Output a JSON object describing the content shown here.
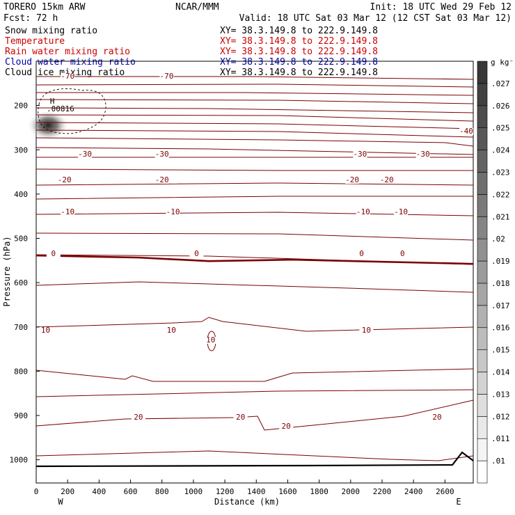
{
  "header": {
    "model": "TORERO  15km ARW",
    "center": "NCAR/MMM",
    "init": "Init: 18 UTC Wed 29 Feb 12",
    "fcst": "Fcst:   72 h",
    "valid": "Valid: 18 UTC Sat 03 Mar 12 (12 CST Sat 03 Mar 12)"
  },
  "legend": [
    {
      "name": "Snow mixing ratio",
      "xy": "XY=  38.3.149.8 to 222.9.149.8",
      "color": "#000000"
    },
    {
      "name": "Temperature",
      "xy": "XY=  38.3.149.8 to 222.9.149.8",
      "color": "#cc0000"
    },
    {
      "name": "Rain water mixing ratio",
      "xy": "XY=  38.3.149.8 to 222.9.149.8",
      "color": "#cc0000"
    },
    {
      "name": "Cloud water mixing ratio",
      "xy": "XY=  38.3.149.8 to 222.9.149.8",
      "color": "#0000aa"
    },
    {
      "name": "Cloud ice mixing ratio",
      "xy": "XY=  38.3.149.8 to 222.9.149.8",
      "color": "#000000"
    }
  ],
  "chart_data": {
    "type": "contour cross-section",
    "xlabel": "Distance (km)",
    "ylabel": "Pressure (hPa)",
    "xlim": [
      0,
      2780
    ],
    "ylim": [
      1050,
      100
    ],
    "x_ticks": [
      0,
      200,
      400,
      600,
      800,
      1000,
      1200,
      1400,
      1600,
      1800,
      2000,
      2200,
      2400,
      2600
    ],
    "y_ticks": [
      200,
      300,
      400,
      500,
      600,
      700,
      800,
      900,
      1000
    ],
    "endpoints": {
      "left": "W",
      "right": "E"
    },
    "temperature_contours_C": [
      {
        "value": -70,
        "labels_at_km": [
          200,
          830
        ]
      },
      {
        "value": -40,
        "labels_at_km": [
          2750
        ]
      },
      {
        "value": -30,
        "labels_at_km": [
          310,
          800,
          2060,
          2460
        ]
      },
      {
        "value": -20,
        "labels_at_km": [
          180,
          800,
          2010,
          2230
        ]
      },
      {
        "value": -10,
        "labels_at_km": [
          200,
          870,
          2080,
          2320
        ]
      },
      {
        "value": 0,
        "pressure_hPa": 545,
        "freezing_level": true,
        "labels_at_km": [
          110,
          1020,
          2070,
          2330
        ]
      },
      {
        "value": 10,
        "labels_at_km": [
          60,
          860,
          1110,
          2100
        ]
      },
      {
        "value": 20,
        "labels_at_km": [
          650,
          1300,
          1590,
          2550
        ]
      }
    ],
    "snow_maximum": {
      "marker": "H",
      "label": ".00816",
      "location_km": 120,
      "pressure_hPa": 210
    },
    "colorbar": {
      "unit": "g kg⁻¹",
      "ticks": [
        ".01",
        ".011",
        ".012",
        ".013",
        ".014",
        ".015",
        ".016",
        ".017",
        ".018",
        ".019",
        ".02",
        ".021",
        ".022",
        ".023",
        ".024",
        ".025",
        ".026",
        ".027"
      ]
    }
  }
}
